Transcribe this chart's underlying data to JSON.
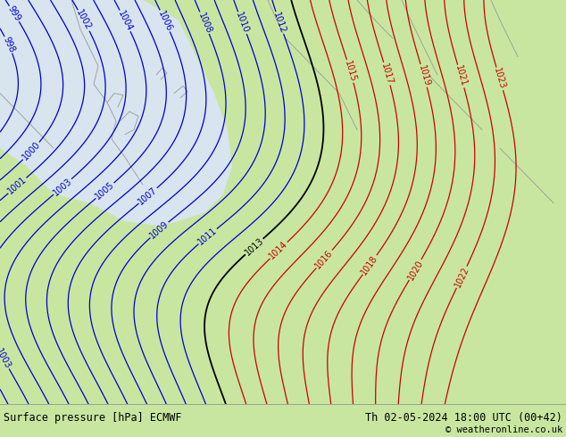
{
  "title_left": "Surface pressure [hPa] ECMWF",
  "title_right": "Th 02-05-2024 18:00 UTC (00+42)",
  "copyright": "© weatheronline.co.uk",
  "bg_color_land": "#c8e6a0",
  "bg_color_sea": "#d8e4ee",
  "contour_color_low": "#0000cc",
  "contour_color_high": "#cc0000",
  "contour_color_transition": "#000000",
  "font_size_label": 7,
  "font_size_bottom": 8.5,
  "bottom_bar_color": "#c8e6a0"
}
